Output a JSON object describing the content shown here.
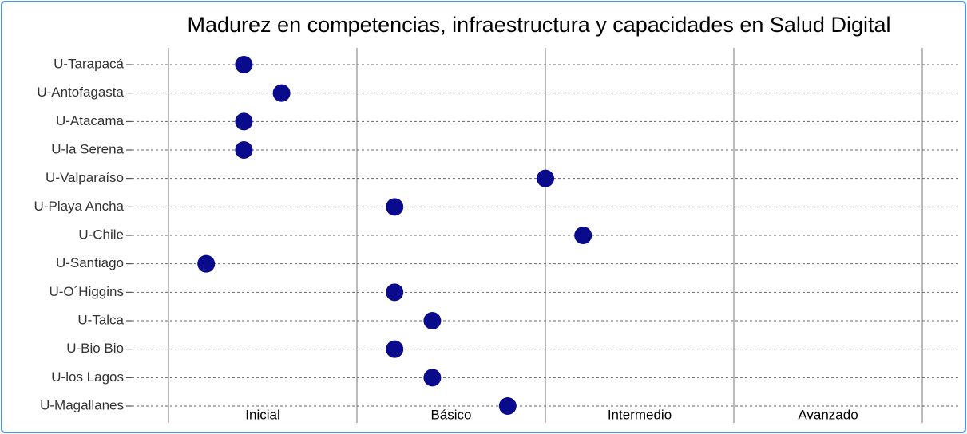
{
  "chart_data": {
    "type": "dot",
    "title": "Madurez en competencias, infraestructura y capacidades en Salud Digital",
    "categories": [
      "U-Tarapacá",
      "U-Antofagasta",
      "U-Atacama",
      "U-la Serena",
      "U-Valparaíso",
      "U-Playa Ancha",
      "U-Chile",
      "U-Santiago",
      "U-O´Higgins",
      "U-Talca",
      "U-Bio Bio",
      "U-los Lagos",
      "U-Magallanes"
    ],
    "values": [
      0.4,
      0.6,
      0.4,
      0.4,
      2.0,
      1.2,
      2.2,
      0.2,
      1.2,
      1.4,
      1.2,
      1.4,
      1.8
    ],
    "color": "#0a0a8c",
    "levels": [
      "Inicial",
      "Básico",
      "Intermedio",
      "Avanzado"
    ],
    "xlim": [
      0,
      4
    ],
    "xticks": [
      0,
      1,
      2,
      3,
      4
    ],
    "grid": true
  }
}
